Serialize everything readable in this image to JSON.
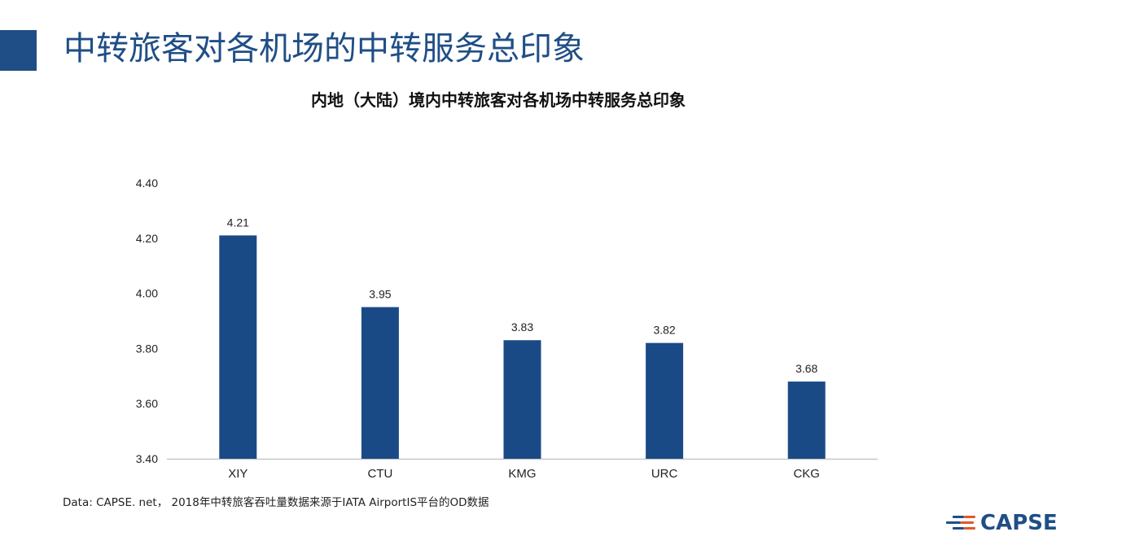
{
  "slide": {
    "title": "中转旅客对各机场的中转服务总印象",
    "footnote": "Data: CAPSE. net， 2018年中转旅客吞吐量数据来源于IATA AirportIS平台的OD数据"
  },
  "logo": {
    "text": "CAPSE",
    "icon": "capse-stripes-logo-icon"
  },
  "colors": {
    "accent": "#1f4e86",
    "bar": "#1a4a86",
    "logo_orange": "#e2572a"
  },
  "chart_data": {
    "type": "bar",
    "title": "内地（大陆）境内中转旅客对各机场中转服务总印象",
    "categories": [
      "XIY",
      "CTU",
      "KMG",
      "URC",
      "CKG"
    ],
    "values": [
      4.21,
      3.95,
      3.83,
      3.82,
      3.68
    ],
    "data_labels": [
      "4.21",
      "3.95",
      "3.83",
      "3.82",
      "3.68"
    ],
    "ylim": [
      3.4,
      4.4
    ],
    "yticks": [
      "3.40",
      "3.60",
      "3.80",
      "4.00",
      "4.20",
      "4.40"
    ],
    "xlabel": "",
    "ylabel": "",
    "grid": false,
    "legend": "none"
  }
}
